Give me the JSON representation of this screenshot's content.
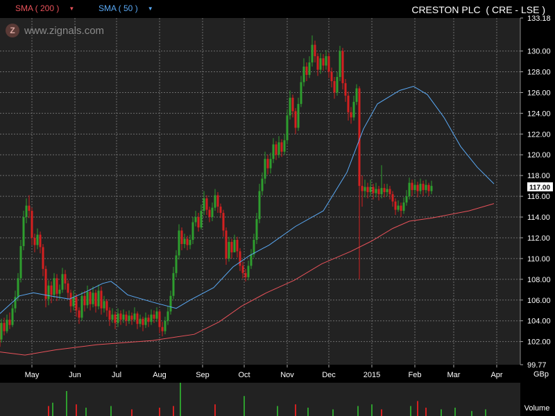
{
  "header": {
    "sma200_label": "SMA ( 200 )",
    "sma50_label": "SMA ( 50 )",
    "title": "CRESTON PLC  ( CRE - LSE )"
  },
  "watermark": {
    "logo_letter": "Z",
    "text": "www.zignals.com"
  },
  "colors": {
    "background": "#000000",
    "plot_background": "#222222",
    "grid": "#6e6e6e",
    "up_candle": "#2e9e2e",
    "down_candle": "#d42020",
    "sma50": "#5aa9f5",
    "sma200": "#e8525a",
    "price_marker_bg": "#ffffff",
    "price_marker_text": "#000000"
  },
  "chart_data": {
    "type": "candlestick",
    "y_axis": {
      "min": 99.77,
      "max": 133.18,
      "ticks": [
        "99.77",
        "102.00",
        "104.00",
        "106.00",
        "108.00",
        "110.00",
        "112.00",
        "114.00",
        "116.00",
        "118.00",
        "120.00",
        "122.00",
        "124.00",
        "126.00",
        "128.00",
        "130.00",
        "133.18"
      ],
      "unit_label": "GBp"
    },
    "x_axis": {
      "labels": [
        "May",
        "Jun",
        "Jul",
        "Aug",
        "Sep",
        "Oct",
        "Nov",
        "Dec",
        "2015",
        "Feb",
        "Mar",
        "Apr"
      ],
      "label_days": [
        23,
        54,
        84,
        115,
        146,
        176,
        207,
        237,
        268,
        299,
        327,
        358
      ]
    },
    "last_price_label": "117.00",
    "volume_label": "Volume",
    "grid": true,
    "sma50": [
      [
        0,
        104.7
      ],
      [
        14,
        106.4
      ],
      [
        24,
        106.7
      ],
      [
        36,
        106.4
      ],
      [
        50,
        106.1
      ],
      [
        62,
        106.8
      ],
      [
        74,
        107.6
      ],
      [
        80,
        107.8
      ],
      [
        84,
        107.4
      ],
      [
        92,
        106.5
      ],
      [
        110,
        105.8
      ],
      [
        127,
        105.2
      ],
      [
        137,
        106.0
      ],
      [
        154,
        107.2
      ],
      [
        168,
        109.2
      ],
      [
        180,
        110.3
      ],
      [
        194,
        111.3
      ],
      [
        213,
        113.1
      ],
      [
        233,
        114.6
      ],
      [
        250,
        118.3
      ],
      [
        262,
        122.5
      ],
      [
        272,
        124.9
      ],
      [
        288,
        126.2
      ],
      [
        298,
        126.6
      ],
      [
        308,
        125.8
      ],
      [
        320,
        123.6
      ],
      [
        332,
        120.8
      ],
      [
        344,
        118.8
      ],
      [
        356,
        117.2
      ]
    ],
    "sma200": [
      [
        0,
        101.0
      ],
      [
        18,
        100.7
      ],
      [
        40,
        101.2
      ],
      [
        70,
        101.7
      ],
      [
        110,
        102.1
      ],
      [
        140,
        102.7
      ],
      [
        158,
        103.9
      ],
      [
        174,
        105.4
      ],
      [
        192,
        106.7
      ],
      [
        212,
        107.9
      ],
      [
        232,
        109.5
      ],
      [
        253,
        110.7
      ],
      [
        268,
        111.7
      ],
      [
        283,
        112.9
      ],
      [
        295,
        113.6
      ],
      [
        311,
        113.9
      ],
      [
        338,
        114.6
      ],
      [
        356,
        115.3
      ]
    ],
    "candles": [
      [
        0,
        103.0,
        102.2,
        103.8,
        101.5
      ],
      [
        1,
        102.2,
        103.8,
        104.2,
        101.9
      ],
      [
        3,
        103.8,
        103.0,
        104.3,
        102.6
      ],
      [
        5,
        103.0,
        104.1,
        104.6,
        102.8
      ],
      [
        7,
        104.1,
        103.6,
        104.8,
        103.2
      ],
      [
        9,
        103.6,
        105.2,
        105.6,
        103.4
      ],
      [
        11,
        105.2,
        106.3,
        106.9,
        104.8
      ],
      [
        13,
        106.3,
        108.1,
        108.6,
        105.9
      ],
      [
        15,
        108.1,
        111.2,
        111.8,
        107.7
      ],
      [
        17,
        111.2,
        114.0,
        114.6,
        110.8
      ],
      [
        19,
        114.0,
        115.1,
        115.8,
        113.4
      ],
      [
        21,
        115.1,
        114.6,
        116.1,
        113.9
      ],
      [
        23,
        114.6,
        112.0,
        114.9,
        111.3
      ],
      [
        25,
        112.0,
        111.3,
        112.4,
        110.6
      ],
      [
        27,
        111.3,
        112.3,
        112.9,
        110.9
      ],
      [
        29,
        112.3,
        111.1,
        112.6,
        110.5
      ],
      [
        31,
        111.1,
        109.0,
        111.4,
        108.3
      ],
      [
        33,
        109.0,
        106.1,
        109.3,
        105.3
      ],
      [
        35,
        106.1,
        107.4,
        107.9,
        105.5
      ],
      [
        37,
        107.4,
        106.5,
        107.8,
        105.7
      ],
      [
        39,
        106.5,
        108.1,
        108.6,
        106.2
      ],
      [
        41,
        108.1,
        106.6,
        108.5,
        105.9
      ],
      [
        43,
        106.6,
        107.0,
        107.5,
        106.1
      ],
      [
        45,
        107.0,
        108.5,
        109.1,
        106.7
      ],
      [
        47,
        108.5,
        107.6,
        108.9,
        107.0
      ],
      [
        49,
        107.6,
        106.7,
        107.9,
        106.1
      ],
      [
        51,
        106.7,
        105.4,
        107.0,
        104.8
      ],
      [
        53,
        105.4,
        106.3,
        106.9,
        105.0
      ],
      [
        55,
        106.3,
        105.0,
        106.6,
        104.4
      ],
      [
        57,
        105.0,
        104.3,
        105.3,
        103.7
      ],
      [
        59,
        104.3,
        106.4,
        106.8,
        104.0
      ],
      [
        61,
        106.4,
        105.5,
        106.9,
        104.9
      ],
      [
        63,
        105.5,
        106.8,
        107.4,
        105.2
      ],
      [
        65,
        106.8,
        105.6,
        107.1,
        105.0
      ],
      [
        67,
        105.6,
        106.7,
        107.3,
        105.3
      ],
      [
        69,
        106.7,
        105.4,
        107.0,
        104.8
      ],
      [
        71,
        105.4,
        106.9,
        107.5,
        105.1
      ],
      [
        73,
        106.9,
        105.2,
        107.3,
        104.6
      ],
      [
        75,
        105.2,
        105.9,
        106.4,
        104.8
      ],
      [
        77,
        105.9,
        105.0,
        106.1,
        104.4
      ],
      [
        79,
        105.0,
        104.1,
        105.3,
        103.5
      ],
      [
        81,
        104.1,
        104.6,
        105.2,
        103.8
      ],
      [
        83,
        104.6,
        103.8,
        104.9,
        103.2
      ],
      [
        85,
        103.8,
        104.7,
        105.2,
        103.4
      ],
      [
        87,
        104.7,
        104.1,
        105.0,
        103.6
      ],
      [
        89,
        104.1,
        104.6,
        105.1,
        103.8
      ],
      [
        91,
        104.6,
        104.0,
        104.9,
        103.5
      ],
      [
        93,
        104.0,
        104.5,
        105.0,
        103.7
      ],
      [
        95,
        104.5,
        104.1,
        104.8,
        103.6
      ],
      [
        97,
        104.1,
        104.7,
        105.3,
        103.9
      ],
      [
        99,
        104.7,
        103.7,
        104.9,
        103.2
      ],
      [
        101,
        103.7,
        104.2,
        104.6,
        103.4
      ],
      [
        103,
        104.2,
        103.6,
        104.4,
        103.0
      ],
      [
        105,
        103.6,
        104.3,
        104.8,
        103.3
      ],
      [
        107,
        104.3,
        103.9,
        104.6,
        103.4
      ],
      [
        109,
        103.9,
        104.6,
        105.1,
        103.6
      ],
      [
        111,
        104.6,
        104.2,
        105.0,
        103.8
      ],
      [
        113,
        104.2,
        104.9,
        105.3,
        103.9
      ],
      [
        115,
        104.9,
        103.4,
        105.1,
        102.8
      ],
      [
        117,
        103.4,
        103.0,
        103.9,
        102.5
      ],
      [
        119,
        103.0,
        104.0,
        104.4,
        102.7
      ],
      [
        121,
        104.0,
        104.9,
        105.4,
        103.6
      ],
      [
        123,
        104.9,
        106.4,
        106.9,
        104.6
      ],
      [
        125,
        106.4,
        108.6,
        109.2,
        106.1
      ],
      [
        127,
        108.6,
        110.3,
        110.8,
        108.2
      ],
      [
        129,
        110.3,
        112.7,
        113.3,
        109.9
      ],
      [
        131,
        112.7,
        111.4,
        113.0,
        110.8
      ],
      [
        133,
        111.4,
        111.9,
        112.4,
        111.0
      ],
      [
        135,
        111.9,
        111.3,
        112.2,
        110.8
      ],
      [
        137,
        111.3,
        111.8,
        112.3,
        110.9
      ],
      [
        139,
        111.8,
        113.5,
        114.0,
        111.4
      ],
      [
        141,
        113.5,
        114.0,
        114.6,
        113.1
      ],
      [
        143,
        114.0,
        113.0,
        114.4,
        112.6
      ],
      [
        145,
        113.0,
        114.6,
        115.2,
        112.8
      ],
      [
        147,
        114.6,
        115.8,
        116.5,
        114.2
      ],
      [
        149,
        115.8,
        114.7,
        116.1,
        114.2
      ],
      [
        151,
        114.7,
        114.0,
        115.0,
        113.5
      ],
      [
        153,
        114.0,
        114.9,
        115.4,
        113.6
      ],
      [
        155,
        114.9,
        116.1,
        116.7,
        114.6
      ],
      [
        157,
        116.1,
        115.0,
        116.4,
        114.4
      ],
      [
        159,
        115.0,
        114.4,
        115.3,
        113.9
      ],
      [
        161,
        114.4,
        112.7,
        114.7,
        112.1
      ],
      [
        163,
        112.7,
        110.0,
        113.0,
        109.4
      ],
      [
        165,
        110.0,
        111.6,
        112.1,
        109.7
      ],
      [
        167,
        111.6,
        110.6,
        111.9,
        110.0
      ],
      [
        169,
        110.6,
        111.8,
        112.3,
        111.2
      ],
      [
        171,
        111.8,
        110.7,
        112.1,
        110.1
      ],
      [
        173,
        110.7,
        109.3,
        111.0,
        108.8
      ],
      [
        175,
        109.3,
        108.6,
        109.7,
        108.1
      ],
      [
        177,
        108.6,
        108.2,
        109.0,
        107.8
      ],
      [
        179,
        108.2,
        109.3,
        109.8,
        107.9
      ],
      [
        181,
        109.3,
        110.4,
        110.9,
        109.0
      ],
      [
        183,
        110.4,
        111.8,
        112.4,
        110.1
      ],
      [
        185,
        111.8,
        113.8,
        114.4,
        111.4
      ],
      [
        187,
        113.8,
        116.5,
        117.2,
        113.4
      ],
      [
        189,
        116.5,
        117.7,
        118.3,
        116.1
      ],
      [
        191,
        117.7,
        119.6,
        120.3,
        117.2
      ],
      [
        193,
        119.6,
        118.7,
        120.0,
        118.1
      ],
      [
        195,
        118.7,
        119.6,
        120.2,
        118.2
      ],
      [
        197,
        119.6,
        121.0,
        121.6,
        119.2
      ],
      [
        199,
        121.0,
        120.0,
        121.3,
        119.5
      ],
      [
        201,
        120.0,
        121.2,
        121.8,
        119.7
      ],
      [
        203,
        121.2,
        120.3,
        121.5,
        119.8
      ],
      [
        205,
        120.3,
        121.4,
        122.0,
        120.0
      ],
      [
        207,
        121.4,
        123.8,
        124.4,
        121.0
      ],
      [
        209,
        123.8,
        125.5,
        126.2,
        123.4
      ],
      [
        211,
        125.5,
        124.2,
        125.8,
        123.6
      ],
      [
        213,
        124.2,
        122.6,
        124.5,
        122.0
      ],
      [
        215,
        122.6,
        124.9,
        125.5,
        122.3
      ],
      [
        217,
        124.9,
        127.0,
        127.6,
        124.6
      ],
      [
        219,
        127.0,
        128.5,
        129.3,
        126.6
      ],
      [
        221,
        128.5,
        127.7,
        128.9,
        127.1
      ],
      [
        223,
        127.7,
        128.9,
        129.5,
        127.4
      ],
      [
        225,
        128.9,
        130.6,
        131.5,
        128.5
      ],
      [
        227,
        130.6,
        129.5,
        131.0,
        128.9
      ],
      [
        229,
        129.5,
        128.2,
        129.8,
        127.6
      ],
      [
        231,
        128.2,
        129.3,
        129.8,
        127.8
      ],
      [
        233,
        129.3,
        128.6,
        129.7,
        128.1
      ],
      [
        235,
        128.6,
        129.5,
        130.1,
        128.2
      ],
      [
        237,
        129.5,
        128.0,
        129.8,
        127.4
      ],
      [
        239,
        128.0,
        127.1,
        128.4,
        126.5
      ],
      [
        241,
        127.1,
        126.0,
        127.5,
        125.4
      ],
      [
        243,
        126.0,
        127.5,
        128.0,
        125.7
      ],
      [
        245,
        127.5,
        130.0,
        130.5,
        127.1
      ],
      [
        247,
        130.0,
        126.9,
        130.3,
        126.3
      ],
      [
        249,
        126.9,
        125.7,
        127.3,
        125.1
      ],
      [
        251,
        125.7,
        124.1,
        126.1,
        123.3
      ],
      [
        253,
        124.1,
        123.6,
        124.6,
        123.0
      ],
      [
        255,
        123.6,
        125.1,
        125.7,
        123.3
      ],
      [
        257,
        125.1,
        126.4,
        126.8,
        124.8
      ],
      [
        259,
        126.4,
        117.0,
        126.6,
        108.0
      ],
      [
        261,
        117.0,
        116.5,
        118.0,
        115.0
      ],
      [
        263,
        116.5,
        116.9,
        117.6,
        115.9
      ],
      [
        265,
        116.9,
        116.4,
        117.3,
        115.8
      ],
      [
        267,
        116.4,
        116.9,
        117.6,
        116.0
      ],
      [
        269,
        116.9,
        116.3,
        117.2,
        115.7
      ],
      [
        271,
        116.3,
        116.7,
        117.3,
        115.9
      ],
      [
        273,
        116.7,
        116.2,
        117.0,
        115.6
      ],
      [
        275,
        116.2,
        116.8,
        119.0,
        115.8
      ],
      [
        277,
        116.8,
        116.4,
        117.2,
        115.9
      ],
      [
        279,
        116.4,
        116.7,
        117.2,
        116.0
      ],
      [
        281,
        116.7,
        116.2,
        117.0,
        115.7
      ],
      [
        283,
        116.2,
        115.5,
        116.5,
        115.0
      ],
      [
        285,
        115.5,
        114.7,
        115.8,
        114.2
      ],
      [
        287,
        114.7,
        115.1,
        115.6,
        114.5
      ],
      [
        289,
        115.1,
        114.6,
        115.4,
        114.0
      ],
      [
        291,
        114.6,
        115.4,
        115.9,
        114.3
      ],
      [
        293,
        115.4,
        116.0,
        116.6,
        115.1
      ],
      [
        295,
        116.0,
        117.3,
        117.8,
        115.7
      ],
      [
        297,
        117.3,
        116.6,
        117.6,
        116.0
      ],
      [
        299,
        116.6,
        117.1,
        117.6,
        116.3
      ],
      [
        301,
        117.1,
        116.5,
        117.4,
        115.9
      ],
      [
        303,
        116.5,
        117.2,
        117.7,
        116.2
      ],
      [
        305,
        117.2,
        116.6,
        117.5,
        116.0
      ],
      [
        307,
        116.6,
        117.1,
        117.6,
        116.3
      ],
      [
        309,
        117.1,
        116.5,
        117.3,
        116.0
      ],
      [
        311,
        116.5,
        117.0,
        117.5,
        116.2
      ]
    ],
    "volume": [
      [
        35,
        0.3
      ],
      [
        38,
        0.4
      ],
      [
        48,
        0.75
      ],
      [
        55,
        0.35
      ],
      [
        62,
        0.25
      ],
      [
        80,
        0.3
      ],
      [
        95,
        0.2
      ],
      [
        115,
        0.25
      ],
      [
        125,
        0.3
      ],
      [
        130,
        1.0
      ],
      [
        155,
        0.35
      ],
      [
        176,
        0.6
      ],
      [
        200,
        0.3
      ],
      [
        213,
        0.35
      ],
      [
        222,
        0.25
      ],
      [
        240,
        0.2
      ],
      [
        258,
        0.3
      ],
      [
        268,
        0.35
      ],
      [
        275,
        0.2
      ],
      [
        296,
        0.3
      ],
      [
        301,
        0.45
      ],
      [
        307,
        0.25
      ],
      [
        318,
        0.2
      ],
      [
        328,
        0.25
      ],
      [
        340,
        0.15
      ],
      [
        350,
        0.2
      ]
    ]
  }
}
